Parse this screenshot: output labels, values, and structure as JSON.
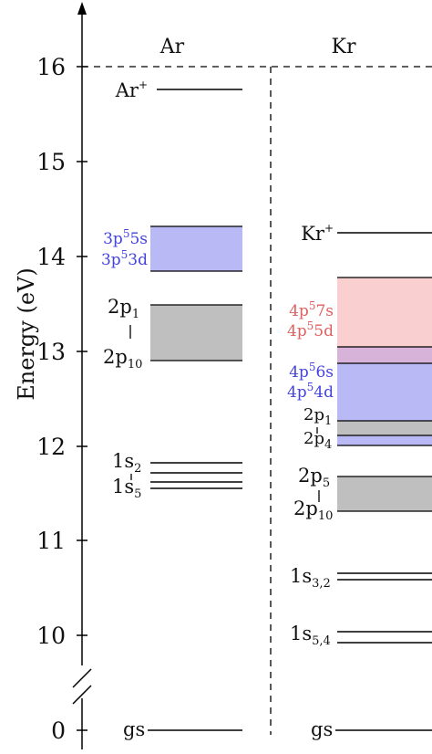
{
  "diagram": {
    "axis": {
      "label": "Energy (eV)",
      "ticks": [
        "16",
        "15",
        "14",
        "13",
        "12",
        "11",
        "10",
        "0"
      ]
    },
    "columns": {
      "ar": "Ar",
      "kr": "Kr"
    },
    "ar": {
      "ion": "Ar",
      "ion_sup": "+",
      "conf_a": "3p",
      "conf_a_sup": "5",
      "conf_a_tail": "5s",
      "conf_b": "3p",
      "conf_b_sup": "5",
      "conf_b_tail": "3d",
      "p1": "2p",
      "p1_sub": "1",
      "p10": "2p",
      "p10_sub": "10",
      "s2": "1s",
      "s2_sub": "2",
      "s5": "1s",
      "s5_sub": "5",
      "gs": "gs"
    },
    "kr": {
      "ion": "Kr",
      "ion_sup": "+",
      "conf_7s": "4p",
      "conf_7s_sup": "5",
      "conf_7s_tail": "7s",
      "conf_5d": "4p",
      "conf_5d_sup": "5",
      "conf_5d_tail": "5d",
      "conf_6s": "4p",
      "conf_6s_sup": "5",
      "conf_6s_tail": "6s",
      "conf_4d": "4p",
      "conf_4d_sup": "5",
      "conf_4d_tail": "4d",
      "p1": "2p",
      "p1_sub": "1",
      "p4": "2p",
      "p4_sub": "4",
      "p5": "2p",
      "p5_sub": "5",
      "p10": "2p",
      "p10_sub": "10",
      "s32": "1s",
      "s32_sub": "3,2",
      "s54": "1s",
      "s54_sub": "5,4",
      "gs": "gs"
    },
    "colors": {
      "blue_band": "#b9b9f6",
      "blue_text": "#4444dd",
      "gray_band": "#bfbfbf",
      "red_band": "#f9cfcf",
      "red_text": "#e06060",
      "overlap_band": "#d7b3da"
    }
  }
}
